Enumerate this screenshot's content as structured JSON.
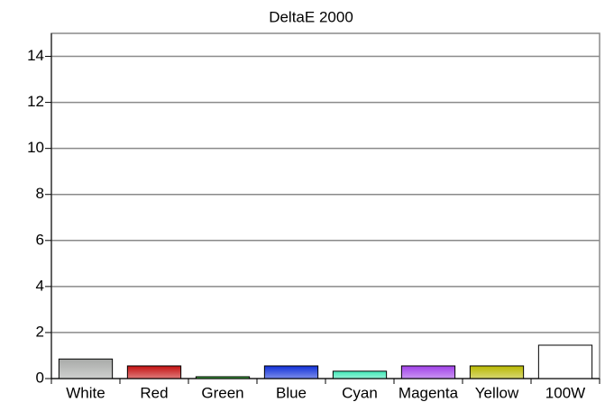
{
  "chart_data": {
    "type": "bar",
    "title": "DeltaE 2000",
    "categories": [
      "White",
      "Red",
      "Green",
      "Blue",
      "Cyan",
      "Magenta",
      "Yellow",
      "100W"
    ],
    "values": [
      0.85,
      0.55,
      0.08,
      0.55,
      0.32,
      0.55,
      0.55,
      1.45
    ],
    "colors": [
      "#a8aaa8",
      "#c41010",
      "#20b020",
      "#1030d8",
      "#40e8b8",
      "#a040e8",
      "#b8b800",
      "#ffffff"
    ],
    "ylim": [
      0,
      15
    ],
    "yticks": [
      0,
      2,
      4,
      6,
      8,
      10,
      12,
      14
    ],
    "grid": true
  }
}
